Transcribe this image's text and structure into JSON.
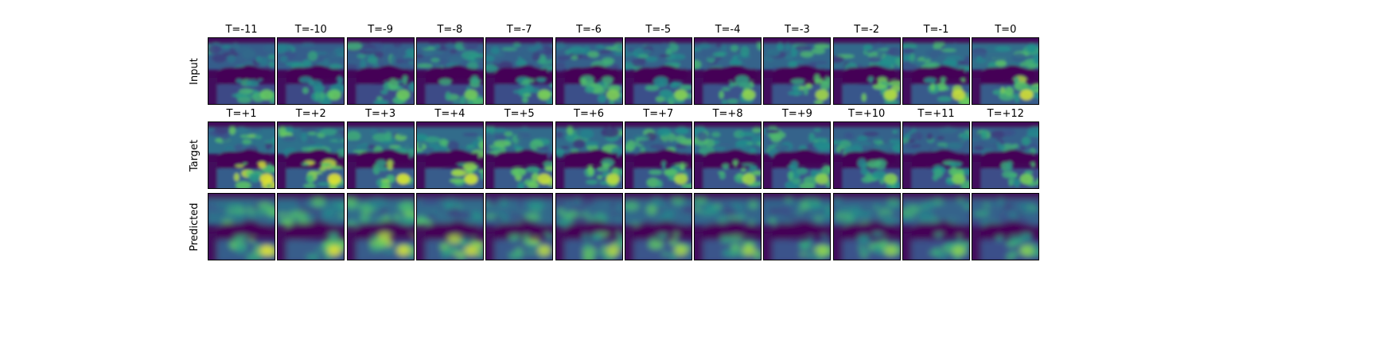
{
  "figure": {
    "colormap": "viridis",
    "colors": {
      "low": "#440154",
      "mid_low": "#3b528b",
      "mid": "#21918c",
      "mid_high": "#5ec962",
      "high": "#fde725"
    },
    "rows": [
      {
        "label": "Input",
        "panels": [
          {
            "title": "T=-11",
            "intensity": 0.3
          },
          {
            "title": "T=-10",
            "intensity": 0.3
          },
          {
            "title": "T=-9",
            "intensity": 0.32
          },
          {
            "title": "T=-8",
            "intensity": 0.33
          },
          {
            "title": "T=-7",
            "intensity": 0.35
          },
          {
            "title": "T=-6",
            "intensity": 0.36
          },
          {
            "title": "T=-5",
            "intensity": 0.38
          },
          {
            "title": "T=-4",
            "intensity": 0.4
          },
          {
            "title": "T=-3",
            "intensity": 0.44
          },
          {
            "title": "T=-2",
            "intensity": 0.48
          },
          {
            "title": "T=-1",
            "intensity": 0.52
          },
          {
            "title": "T=0",
            "intensity": 0.55
          }
        ]
      },
      {
        "label": "Target",
        "panels": [
          {
            "title": "T=+1",
            "intensity": 0.58
          },
          {
            "title": "T=+2",
            "intensity": 0.58
          },
          {
            "title": "T=+3",
            "intensity": 0.56
          },
          {
            "title": "T=+4",
            "intensity": 0.54
          },
          {
            "title": "T=+5",
            "intensity": 0.52
          },
          {
            "title": "T=+6",
            "intensity": 0.5
          },
          {
            "title": "T=+7",
            "intensity": 0.47
          },
          {
            "title": "T=+8",
            "intensity": 0.44
          },
          {
            "title": "T=+9",
            "intensity": 0.4
          },
          {
            "title": "T=+10",
            "intensity": 0.38
          },
          {
            "title": "T=+11",
            "intensity": 0.36
          },
          {
            "title": "T=+12",
            "intensity": 0.34
          }
        ]
      },
      {
        "label": "Predicted",
        "panels": [
          {
            "title": "",
            "intensity": 0.58
          },
          {
            "title": "",
            "intensity": 0.57
          },
          {
            "title": "",
            "intensity": 0.55
          },
          {
            "title": "",
            "intensity": 0.53
          },
          {
            "title": "",
            "intensity": 0.5
          },
          {
            "title": "",
            "intensity": 0.47
          },
          {
            "title": "",
            "intensity": 0.45
          },
          {
            "title": "",
            "intensity": 0.43
          },
          {
            "title": "",
            "intensity": 0.41
          },
          {
            "title": "",
            "intensity": 0.4
          },
          {
            "title": "",
            "intensity": 0.39
          },
          {
            "title": "",
            "intensity": 0.38
          }
        ]
      }
    ]
  }
}
